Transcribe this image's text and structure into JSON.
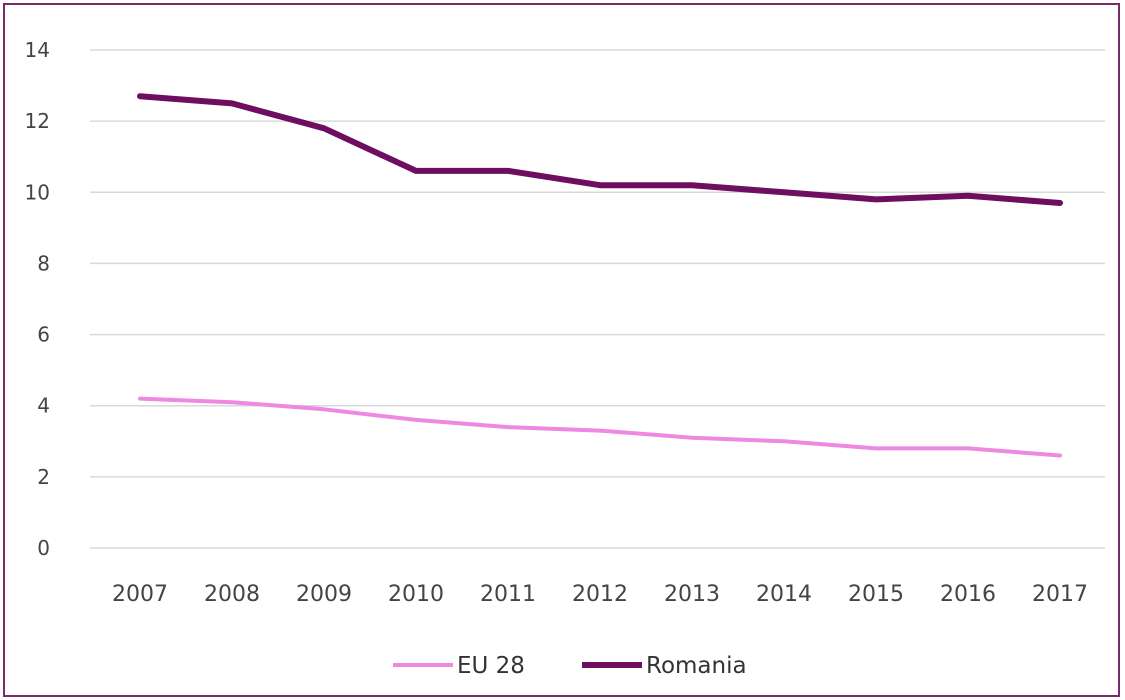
{
  "chart_data": {
    "type": "line",
    "title": "",
    "xlabel": "",
    "ylabel": "",
    "x": [
      "2007",
      "2008",
      "2009",
      "2010",
      "2011",
      "2012",
      "2013",
      "2014",
      "2015",
      "2016",
      "2017"
    ],
    "ylim": [
      0,
      14
    ],
    "yticks": [
      0,
      2,
      4,
      6,
      8,
      10,
      12,
      14
    ],
    "grid": true,
    "legend_position": "bottom",
    "series": [
      {
        "name": "EU 28",
        "color": "#ee88e0",
        "values": [
          4.2,
          4.1,
          3.9,
          3.6,
          3.4,
          3.3,
          3.1,
          3.0,
          2.8,
          2.8,
          2.6
        ]
      },
      {
        "name": "Romania",
        "color": "#6e0e60",
        "values": [
          12.7,
          12.5,
          11.8,
          10.6,
          10.6,
          10.2,
          10.2,
          10.0,
          9.8,
          9.9,
          9.7
        ]
      }
    ]
  }
}
